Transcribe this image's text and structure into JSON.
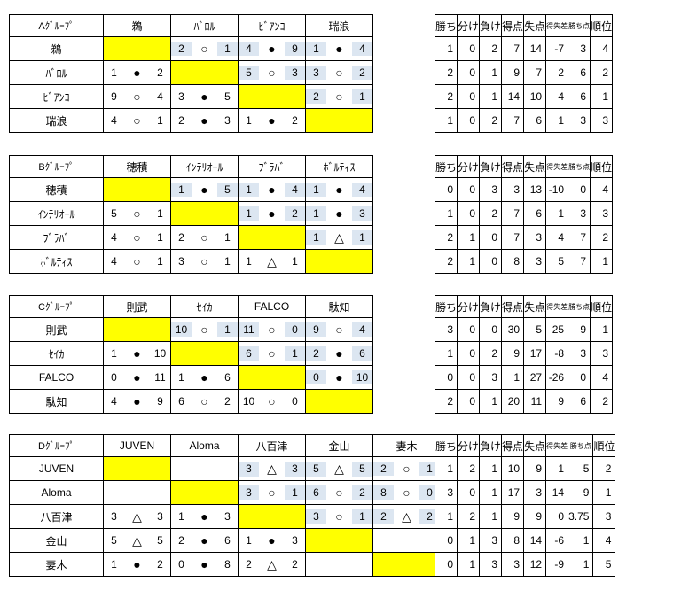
{
  "colors": {
    "diagonal_fill": "#ffff00",
    "upper_triangle_fill": "#dce6f1",
    "border": "#000000"
  },
  "legend": {
    "win_symbol": "○",
    "draw_symbol": "△",
    "lose_symbol": "●"
  },
  "standings_headers": [
    "勝ち",
    "分け",
    "負け",
    "得点",
    "失点",
    "得失差",
    "勝ち点",
    "順位"
  ],
  "groups": [
    {
      "key": "a",
      "label": "Aｸﾞﾙｰﾌﾟ",
      "teams": [
        "鵜",
        "ﾊﾞﾛﾙ",
        "ﾋﾞｱﾝｺ",
        "瑞浪"
      ],
      "matrix": [
        [
          "D",
          [
            "2",
            "○",
            "1"
          ],
          [
            "4",
            "●",
            "9"
          ],
          [
            "1",
            "●",
            "4"
          ]
        ],
        [
          [
            "1",
            "●",
            "2"
          ],
          "D",
          [
            "5",
            "○",
            "3"
          ],
          [
            "3",
            "○",
            "2"
          ]
        ],
        [
          [
            "9",
            "○",
            "4"
          ],
          [
            "3",
            "●",
            "5"
          ],
          "D",
          [
            "2",
            "○",
            "1"
          ]
        ],
        [
          [
            "4",
            "○",
            "1"
          ],
          [
            "2",
            "●",
            "3"
          ],
          [
            "1",
            "●",
            "2"
          ],
          "D"
        ]
      ],
      "standings": [
        [
          "1",
          "0",
          "2",
          "7",
          "14",
          "-7",
          "3",
          "4"
        ],
        [
          "2",
          "0",
          "1",
          "9",
          "7",
          "2",
          "6",
          "2"
        ],
        [
          "2",
          "0",
          "1",
          "14",
          "10",
          "4",
          "6",
          "1"
        ],
        [
          "1",
          "0",
          "2",
          "7",
          "6",
          "1",
          "3",
          "3"
        ]
      ]
    },
    {
      "key": "b",
      "label": "Bｸﾞﾙｰﾌﾟ",
      "teams": [
        "穂積",
        "ｲﾝﾃﾘｵｰﾙ",
        "ﾌﾞﾗﾊﾞ",
        "ﾎﾞﾙﾃｨｽ"
      ],
      "matrix": [
        [
          "D",
          [
            "1",
            "●",
            "5"
          ],
          [
            "1",
            "●",
            "4"
          ],
          [
            "1",
            "●",
            "4"
          ]
        ],
        [
          [
            "5",
            "○",
            "1"
          ],
          "D",
          [
            "1",
            "●",
            "2"
          ],
          [
            "1",
            "●",
            "3"
          ]
        ],
        [
          [
            "4",
            "○",
            "1"
          ],
          [
            "2",
            "○",
            "1"
          ],
          "D",
          [
            "1",
            "△",
            "1"
          ]
        ],
        [
          [
            "4",
            "○",
            "1"
          ],
          [
            "3",
            "○",
            "1"
          ],
          [
            "1",
            "△",
            "1"
          ],
          "D"
        ]
      ],
      "standings": [
        [
          "0",
          "0",
          "3",
          "3",
          "13",
          "-10",
          "0",
          "4"
        ],
        [
          "1",
          "0",
          "2",
          "7",
          "6",
          "1",
          "3",
          "3"
        ],
        [
          "2",
          "1",
          "0",
          "7",
          "3",
          "4",
          "7",
          "2"
        ],
        [
          "2",
          "1",
          "0",
          "8",
          "3",
          "5",
          "7",
          "1"
        ]
      ]
    },
    {
      "key": "c",
      "label": "Cｸﾞﾙｰﾌﾟ",
      "teams": [
        "則武",
        "ｾｲｶ",
        "FALCO",
        "駄知"
      ],
      "matrix": [
        [
          "D",
          [
            "10",
            "○",
            "1"
          ],
          [
            "11",
            "○",
            "0"
          ],
          [
            "9",
            "○",
            "4"
          ]
        ],
        [
          [
            "1",
            "●",
            "10"
          ],
          "D",
          [
            "6",
            "○",
            "1"
          ],
          [
            "2",
            "●",
            "6"
          ]
        ],
        [
          [
            "0",
            "●",
            "11"
          ],
          [
            "1",
            "●",
            "6"
          ],
          "D",
          [
            "0",
            "●",
            "10"
          ]
        ],
        [
          [
            "4",
            "●",
            "9"
          ],
          [
            "6",
            "○",
            "2"
          ],
          [
            "10",
            "○",
            "0"
          ],
          "D"
        ]
      ],
      "standings": [
        [
          "3",
          "0",
          "0",
          "30",
          "5",
          "25",
          "9",
          "1"
        ],
        [
          "1",
          "0",
          "2",
          "9",
          "17",
          "-8",
          "3",
          "3"
        ],
        [
          "0",
          "0",
          "3",
          "1",
          "27",
          "-26",
          "0",
          "4"
        ],
        [
          "2",
          "0",
          "1",
          "20",
          "11",
          "9",
          "6",
          "2"
        ]
      ]
    },
    {
      "key": "d",
      "label": "Dｸﾞﾙｰﾌﾟ",
      "teams": [
        "JUVEN",
        "Aloma",
        "八百津",
        "金山",
        "妻木"
      ],
      "matrix": [
        [
          "D",
          "E",
          [
            "3",
            "△",
            "3"
          ],
          [
            "5",
            "△",
            "5"
          ],
          [
            "2",
            "○",
            "1"
          ]
        ],
        [
          "E",
          "D",
          [
            "3",
            "○",
            "1"
          ],
          [
            "6",
            "○",
            "2"
          ],
          [
            "8",
            "○",
            "0"
          ]
        ],
        [
          [
            "3",
            "△",
            "3"
          ],
          [
            "1",
            "●",
            "3"
          ],
          "D",
          [
            "3",
            "○",
            "1"
          ],
          [
            "2",
            "△",
            "2"
          ]
        ],
        [
          [
            "5",
            "△",
            "5"
          ],
          [
            "2",
            "●",
            "6"
          ],
          [
            "1",
            "●",
            "3"
          ],
          "D",
          "E"
        ],
        [
          [
            "1",
            "●",
            "2"
          ],
          [
            "0",
            "●",
            "8"
          ],
          [
            "2",
            "△",
            "2"
          ],
          "E",
          "D"
        ]
      ],
      "standings": [
        [
          "1",
          "2",
          "1",
          "10",
          "9",
          "1",
          "5",
          "2"
        ],
        [
          "3",
          "0",
          "1",
          "17",
          "3",
          "14",
          "9",
          "1"
        ],
        [
          "1",
          "2",
          "1",
          "9",
          "9",
          "0",
          "3.75",
          "3"
        ],
        [
          "0",
          "1",
          "3",
          "8",
          "14",
          "-6",
          "1",
          "4"
        ],
        [
          "0",
          "1",
          "3",
          "3",
          "12",
          "-9",
          "1",
          "5"
        ]
      ]
    }
  ]
}
